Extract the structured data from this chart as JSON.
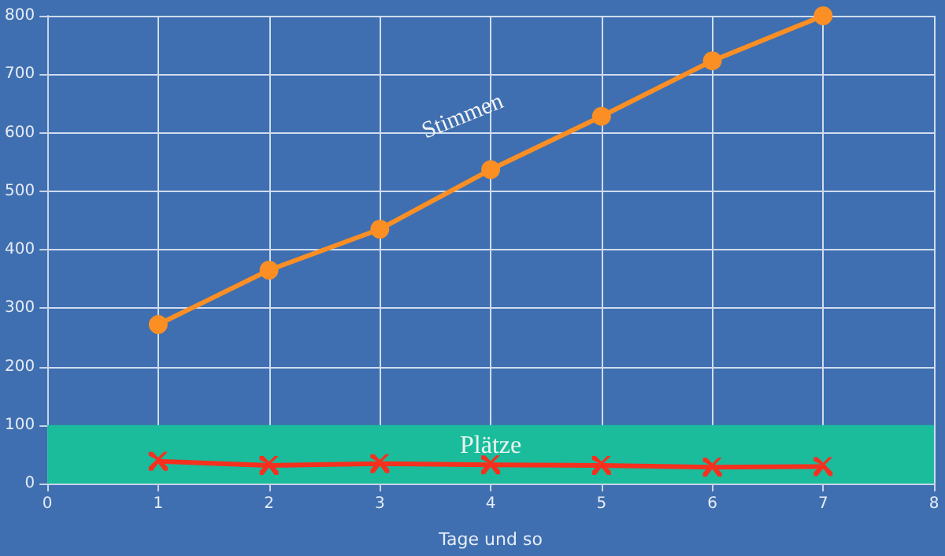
{
  "chart_data": {
    "type": "line",
    "xlabel": "Tage und so",
    "x": [
      1,
      2,
      3,
      4,
      5,
      6,
      7
    ],
    "series": [
      {
        "name": "Stimmen",
        "color": "#fb8f24",
        "marker": "circle",
        "values": [
          272,
          365,
          435,
          537,
          628,
          723,
          800
        ]
      },
      {
        "color": "#f5301e",
        "marker": "cross",
        "values": [
          38,
          31,
          34,
          32,
          31,
          28,
          29
        ]
      }
    ],
    "bands": [
      {
        "axis": "y",
        "from": 0,
        "to": 100,
        "label": "Plätze",
        "color": "#1abc9c"
      }
    ],
    "xlim": [
      0,
      8
    ],
    "xticks": [
      0,
      1,
      2,
      3,
      4,
      5,
      6,
      7,
      8
    ],
    "ylim": [
      0,
      800
    ],
    "yticks": [
      0,
      100,
      200,
      300,
      400,
      500,
      600,
      700,
      800
    ],
    "grid": true,
    "legend": false,
    "line_style": "solid"
  }
}
